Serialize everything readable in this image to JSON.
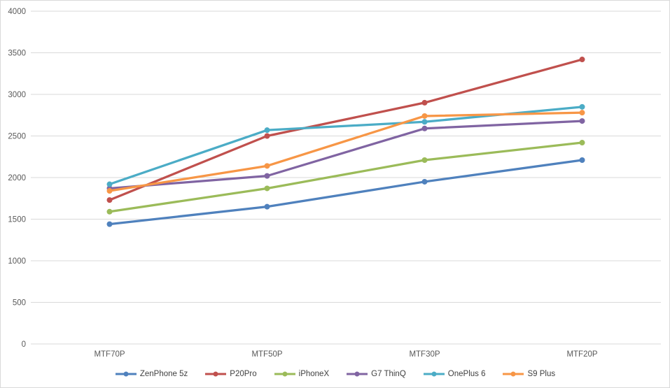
{
  "chart_data": {
    "type": "line",
    "title": "",
    "xlabel": "",
    "ylabel": "",
    "categories": [
      "MTF70P",
      "MTF50P",
      "MTF30P",
      "MTF20P"
    ],
    "series": [
      {
        "name": "ZenPhone 5z",
        "color": "#4F81BD",
        "values": [
          1440,
          1650,
          1950,
          2210
        ]
      },
      {
        "name": "P20Pro",
        "color": "#C0504D",
        "values": [
          1730,
          2500,
          2900,
          3420
        ]
      },
      {
        "name": "iPhoneX",
        "color": "#9BBB59",
        "values": [
          1590,
          1870,
          2210,
          2420
        ]
      },
      {
        "name": "G7 ThinQ",
        "color": "#8064A2",
        "values": [
          1870,
          2020,
          2590,
          2680
        ]
      },
      {
        "name": "OnePlus 6",
        "color": "#4BACC6",
        "values": [
          1920,
          2570,
          2670,
          2850
        ]
      },
      {
        "name": "S9 Plus",
        "color": "#F79646",
        "values": [
          1840,
          2140,
          2740,
          2780
        ]
      }
    ],
    "ylim": [
      0,
      4000
    ],
    "yticks": [
      0,
      500,
      1000,
      1500,
      2000,
      2500,
      3000,
      3500,
      4000
    ],
    "grid": "horizontal",
    "legend_position": "bottom",
    "marker": "circle"
  },
  "style": {
    "grid_color": "#d9d9d9",
    "axis_text_color": "#595959",
    "legend_text_color": "#404040",
    "background": "#ffffff",
    "border_color": "#d9d9d9"
  }
}
